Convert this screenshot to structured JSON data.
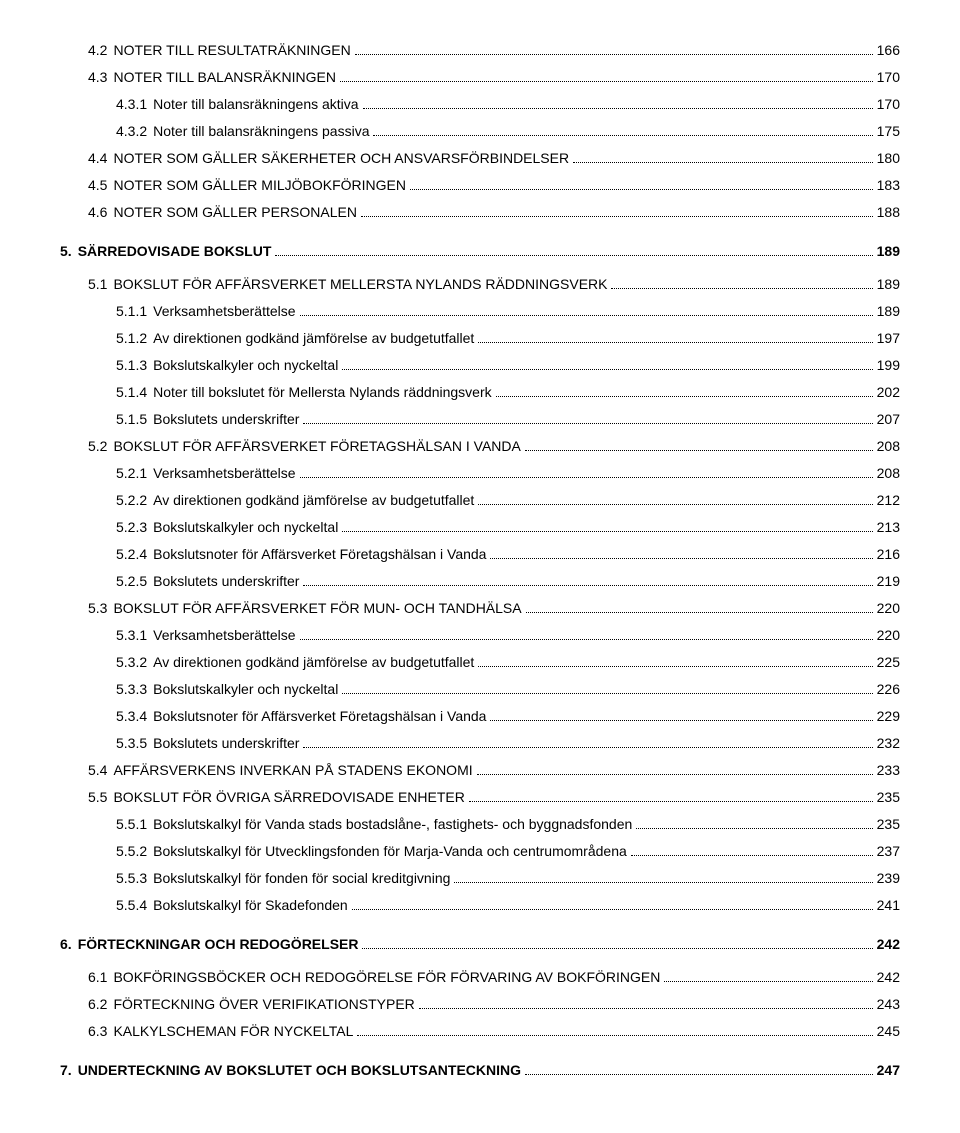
{
  "entries": [
    {
      "level": 2,
      "num": "4.2",
      "text": "NOTER TILL RESULTATRÄKNINGEN",
      "page": "166",
      "smallcaps": true
    },
    {
      "level": 2,
      "num": "4.3",
      "text": "NOTER TILL BALANSRÄKNINGEN",
      "page": "170",
      "smallcaps": true
    },
    {
      "level": 3,
      "num": "4.3.1",
      "text": "Noter till balansräkningens aktiva",
      "page": "170"
    },
    {
      "level": 3,
      "num": "4.3.2",
      "text": "Noter till balansräkningens passiva",
      "page": "175"
    },
    {
      "level": 2,
      "num": "4.4",
      "text": "NOTER SOM GÄLLER SÄKERHETER OCH ANSVARSFÖRBINDELSER",
      "page": "180",
      "smallcaps": true
    },
    {
      "level": 2,
      "num": "4.5",
      "text": "NOTER SOM GÄLLER MILJÖBOKFÖRINGEN",
      "page": "183",
      "smallcaps": true
    },
    {
      "level": 2,
      "num": "4.6",
      "text": "NOTER SOM GÄLLER PERSONALEN",
      "page": "188",
      "smallcaps": true
    },
    {
      "level": 1,
      "num": "5.",
      "text": "SÄRREDOVISADE BOKSLUT",
      "page": "189",
      "top": true
    },
    {
      "level": 2,
      "num": "5.1",
      "text": "BOKSLUT FÖR AFFÄRSVERKET MELLERSTA NYLANDS RÄDDNINGSVERK",
      "page": "189",
      "smallcaps": true
    },
    {
      "level": 3,
      "num": "5.1.1",
      "text": "Verksamhetsberättelse",
      "page": "189"
    },
    {
      "level": 3,
      "num": "5.1.2",
      "text": "Av direktionen godkänd jämförelse av budgetutfallet",
      "page": "197"
    },
    {
      "level": 3,
      "num": "5.1.3",
      "text": "Bokslutskalkyler och nyckeltal",
      "page": "199"
    },
    {
      "level": 3,
      "num": "5.1.4",
      "text": "Noter till bokslutet för Mellersta Nylands räddningsverk",
      "page": "202"
    },
    {
      "level": 3,
      "num": "5.1.5",
      "text": "Bokslutets underskrifter",
      "page": "207"
    },
    {
      "level": 2,
      "num": "5.2",
      "text": "BOKSLUT FÖR AFFÄRSVERKET FÖRETAGSHÄLSAN I VANDA",
      "page": "208",
      "smallcaps": true
    },
    {
      "level": 3,
      "num": "5.2.1",
      "text": "Verksamhetsberättelse",
      "page": "208"
    },
    {
      "level": 3,
      "num": "5.2.2",
      "text": "Av direktionen godkänd jämförelse av budgetutfallet",
      "page": "212"
    },
    {
      "level": 3,
      "num": "5.2.3",
      "text": "Bokslutskalkyler och nyckeltal",
      "page": "213"
    },
    {
      "level": 3,
      "num": "5.2.4",
      "text": "Bokslutsnoter för Affärsverket Företagshälsan i Vanda",
      "page": "216"
    },
    {
      "level": 3,
      "num": "5.2.5",
      "text": "Bokslutets underskrifter",
      "page": "219"
    },
    {
      "level": 2,
      "num": "5.3",
      "text": "BOKSLUT FÖR AFFÄRSVERKET FÖR MUN- OCH TANDHÄLSA",
      "page": "220",
      "smallcaps": true
    },
    {
      "level": 3,
      "num": "5.3.1",
      "text": "Verksamhetsberättelse",
      "page": "220"
    },
    {
      "level": 3,
      "num": "5.3.2",
      "text": "Av direktionen godkänd jämförelse av budgetutfallet",
      "page": "225"
    },
    {
      "level": 3,
      "num": "5.3.3",
      "text": "Bokslutskalkyler och nyckeltal",
      "page": "226"
    },
    {
      "level": 3,
      "num": "5.3.4",
      "text": "Bokslutsnoter för Affärsverket Företagshälsan i Vanda",
      "page": "229"
    },
    {
      "level": 3,
      "num": "5.3.5",
      "text": "Bokslutets underskrifter",
      "page": "232"
    },
    {
      "level": 2,
      "num": "5.4",
      "text": "AFFÄRSVERKENS INVERKAN PÅ STADENS EKONOMI",
      "page": "233",
      "smallcaps": true
    },
    {
      "level": 2,
      "num": "5.5",
      "text": "BOKSLUT FÖR ÖVRIGA SÄRREDOVISADE ENHETER",
      "page": "235",
      "smallcaps": true
    },
    {
      "level": 3,
      "num": "5.5.1",
      "text": "Bokslutskalkyl för Vanda stads bostadslåne-, fastighets- och byggnadsfonden",
      "page": "235"
    },
    {
      "level": 3,
      "num": "5.5.2",
      "text": "Bokslutskalkyl för Utvecklingsfonden för Marja-Vanda och centrumområdena",
      "page": "237"
    },
    {
      "level": 3,
      "num": "5.5.3",
      "text": "Bokslutskalkyl för fonden för social kreditgivning",
      "page": "239"
    },
    {
      "level": 3,
      "num": "5.5.4",
      "text": "Bokslutskalkyl för Skadefonden",
      "page": "241"
    },
    {
      "level": 1,
      "num": "6.",
      "text": "FÖRTECKNINGAR OCH REDOGÖRELSER",
      "page": "242",
      "top": true
    },
    {
      "level": 2,
      "num": "6.1",
      "text": "BOKFÖRINGSBÖCKER OCH REDOGÖRELSE FÖR FÖRVARING AV BOKFÖRINGEN",
      "page": "242",
      "smallcaps": true
    },
    {
      "level": 2,
      "num": "6.2",
      "text": "FÖRTECKNING ÖVER VERIFIKATIONSTYPER",
      "page": "243",
      "smallcaps": true
    },
    {
      "level": 2,
      "num": "6.3",
      "text": "KALKYLSCHEMAN FÖR NYCKELTAL",
      "page": "245",
      "smallcaps": true
    },
    {
      "level": 1,
      "num": "7.",
      "text": "UNDERTECKNING AV BOKSLUTET OCH BOKSLUTSANTECKNING",
      "page": "247",
      "top": true
    }
  ]
}
